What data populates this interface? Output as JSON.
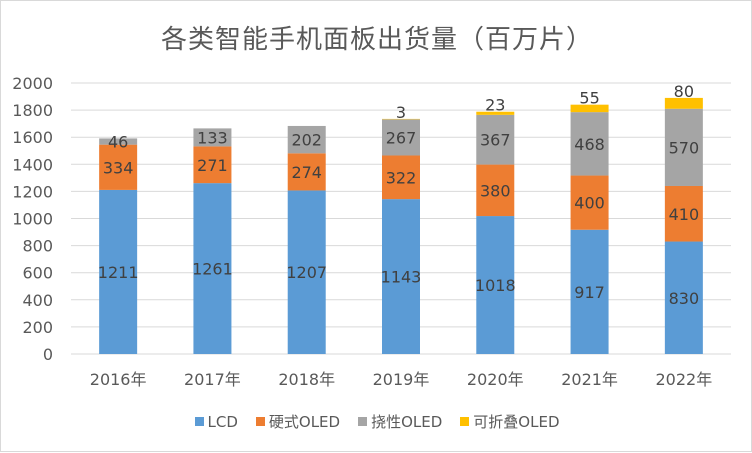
{
  "chart_data": {
    "type": "bar",
    "stacked": true,
    "title": "各类智能手机面板出货量（百万片）",
    "xlabel": "",
    "ylabel": "",
    "ylim": [
      0,
      2000
    ],
    "yticks": [
      0,
      200,
      400,
      600,
      800,
      1000,
      1200,
      1400,
      1600,
      1800,
      2000
    ],
    "grid": true,
    "legend_position": "bottom",
    "categories": [
      "2016年",
      "2017年",
      "2018年",
      "2019年",
      "2020年",
      "2021年",
      "2022年"
    ],
    "series": [
      {
        "name": "LCD",
        "color": "#5B9BD5",
        "values": [
          1211,
          1261,
          1207,
          1143,
          1018,
          917,
          830
        ]
      },
      {
        "name": "硬式OLED",
        "color": "#ED7D31",
        "values": [
          334,
          271,
          274,
          322,
          380,
          400,
          410
        ]
      },
      {
        "name": "挠性OLED",
        "color": "#A5A5A5",
        "values": [
          46,
          133,
          202,
          267,
          367,
          468,
          570
        ]
      },
      {
        "name": "可折叠OLED",
        "color": "#FFC000",
        "values": [
          null,
          null,
          null,
          3,
          23,
          55,
          80
        ]
      }
    ]
  }
}
